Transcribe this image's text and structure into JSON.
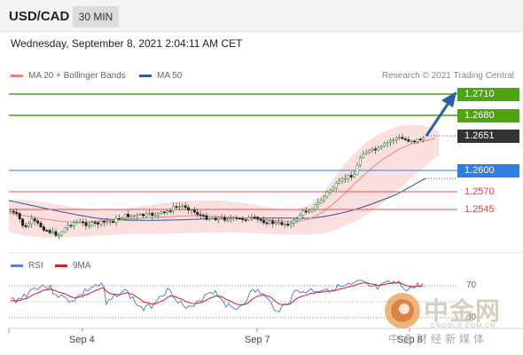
{
  "header": {
    "symbol": "USD/CAD",
    "timeframe": "30 MIN"
  },
  "datetime": "Wednesday, September 8, 2021 2:04:11 AM CET",
  "legend": [
    {
      "label": "MA 20 + Bollinger Bands",
      "color": "#f08080"
    },
    {
      "label": "MA 50",
      "color": "#2c5aa0"
    }
  ],
  "credit": "Research © 2021 Trading Central",
  "levels": {
    "target2": "1.2710",
    "target1": "1.2680",
    "current": "1.2651",
    "pivot": "1.2600",
    "support1": "1.2570",
    "support2": "1.2545"
  },
  "colors": {
    "green": "#4ca40f",
    "blue": "#2f7ee3",
    "dark": "#333333",
    "red": "#e05555",
    "arrow": "#2a5ea8",
    "band": "#fbd5d5"
  },
  "rsi": {
    "legend": [
      {
        "label": "RSI",
        "color": "#5b7fd6"
      },
      {
        "label": "9MA",
        "color": "#cc2222"
      }
    ],
    "level_70": "70",
    "level_30": "30"
  },
  "xaxis": [
    "Sep 4",
    "Sep 7",
    "Sep 8"
  ],
  "watermark": {
    "main": "中金网",
    "site": "CNGOLD.COM.CN",
    "sub": "中金财经新媒体"
  }
}
